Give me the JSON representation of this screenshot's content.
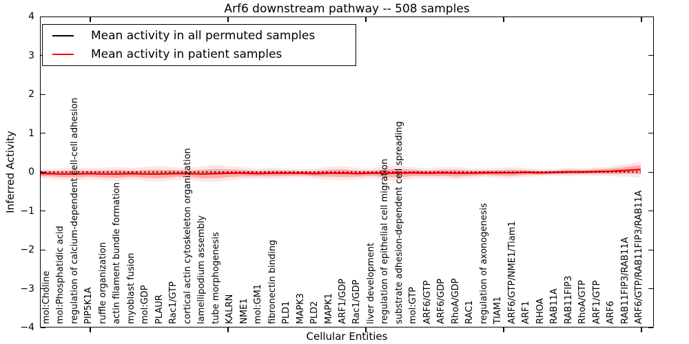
{
  "title": "Arf6 downstream pathway -- 508 samples",
  "axes": {
    "ylabel": "Inferred Activity",
    "xlabel": "Cellular Entities",
    "ytick_labels": [
      "4",
      "3",
      "2",
      "1",
      "0",
      "−1",
      "−2",
      "−3",
      "−4"
    ],
    "ylim": [
      -4,
      4
    ],
    "grid": false
  },
  "legend": {
    "position": "upper left",
    "items": [
      {
        "label": "Mean activity in all permuted samples",
        "color": "#000000"
      },
      {
        "label": "Mean activity in patient samples",
        "color": "#ff0000"
      }
    ]
  },
  "colors": {
    "patient_line": "#ff0000",
    "permuted_line": "#000000",
    "confidence_band": "#ff0000",
    "background": "#ffffff"
  },
  "chart_data": {
    "type": "line",
    "title": "Arf6 downstream pathway -- 508 samples",
    "xlabel": "Cellular Entities",
    "ylabel": "Inferred Activity",
    "ylim": [
      -4,
      4
    ],
    "legend_position": "upper left",
    "categories": [
      "mol:Choline",
      "mol:Phosphatidic acid",
      "regulation of calcium-dependent cell-cell adhesion",
      "PIP5K1A",
      "ruffle organization",
      "actin filament bundle formation",
      "myoblast fusion",
      "mol:GDP",
      "PLAUR",
      "Rac1/GTP",
      "cortical actin cytoskeleton organization",
      "lamellipodium assembly",
      "tube morphogenesis",
      "KALRN",
      "NME1",
      "mol:GM1",
      "fibronectin binding",
      "PLD1",
      "MAPK3",
      "PLD2",
      "MAPK1",
      "ARF1/GDP",
      "Rac1/GDP",
      "liver development",
      "regulation of epithelial cell migration",
      "substrate adhesion-dependent cell spreading",
      "mol:GTP",
      "ARF6/GTP",
      "ARF6/GDP",
      "RhoA/GDP",
      "RAC1",
      "regulation of axonogenesis",
      "TIAM1",
      "ARF6/GTP/NME1/Tiam1",
      "ARF1",
      "RHOA",
      "RAB11A",
      "RAB11FIP3",
      "RhoA/GTP",
      "ARF1/GTP",
      "ARF6",
      "RAB11FIP3/RAB11A",
      "ARF6/GTP/RAB11FIP3/RAB11A"
    ],
    "series": [
      {
        "name": "Mean activity in all permuted samples",
        "color": "#000000",
        "style": "dotted",
        "values": [
          0,
          0,
          0,
          0,
          0,
          0,
          0,
          0,
          0,
          0,
          0,
          0,
          0,
          0,
          0,
          0,
          0,
          0,
          0,
          0,
          0,
          0,
          0,
          0,
          0,
          0,
          0,
          0,
          0,
          0,
          0,
          0,
          0,
          0,
          0,
          0,
          0,
          0,
          0,
          0,
          0,
          0,
          0
        ]
      },
      {
        "name": "Mean activity in patient samples",
        "color": "#ff0000",
        "style": "solid",
        "values": [
          -0.04,
          -0.05,
          -0.05,
          -0.04,
          -0.05,
          -0.05,
          -0.04,
          -0.05,
          -0.05,
          -0.04,
          -0.04,
          -0.05,
          -0.04,
          -0.03,
          -0.03,
          -0.04,
          -0.03,
          -0.03,
          -0.03,
          -0.04,
          -0.03,
          -0.03,
          -0.04,
          -0.03,
          -0.03,
          -0.03,
          -0.02,
          -0.03,
          -0.02,
          -0.03,
          -0.03,
          -0.02,
          -0.02,
          -0.02,
          -0.01,
          -0.02,
          -0.01,
          0.0,
          0.0,
          0.01,
          0.02,
          0.04,
          0.06
        ],
        "band_halfwidth": [
          0.07,
          0.08,
          0.09,
          0.08,
          0.09,
          0.1,
          0.08,
          0.1,
          0.11,
          0.09,
          0.08,
          0.11,
          0.12,
          0.1,
          0.08,
          0.07,
          0.08,
          0.07,
          0.06,
          0.07,
          0.09,
          0.1,
          0.08,
          0.07,
          0.1,
          0.11,
          0.08,
          0.07,
          0.08,
          0.09,
          0.07,
          0.06,
          0.07,
          0.08,
          0.06,
          0.05,
          0.05,
          0.06,
          0.05,
          0.06,
          0.07,
          0.09,
          0.11
        ]
      }
    ]
  }
}
